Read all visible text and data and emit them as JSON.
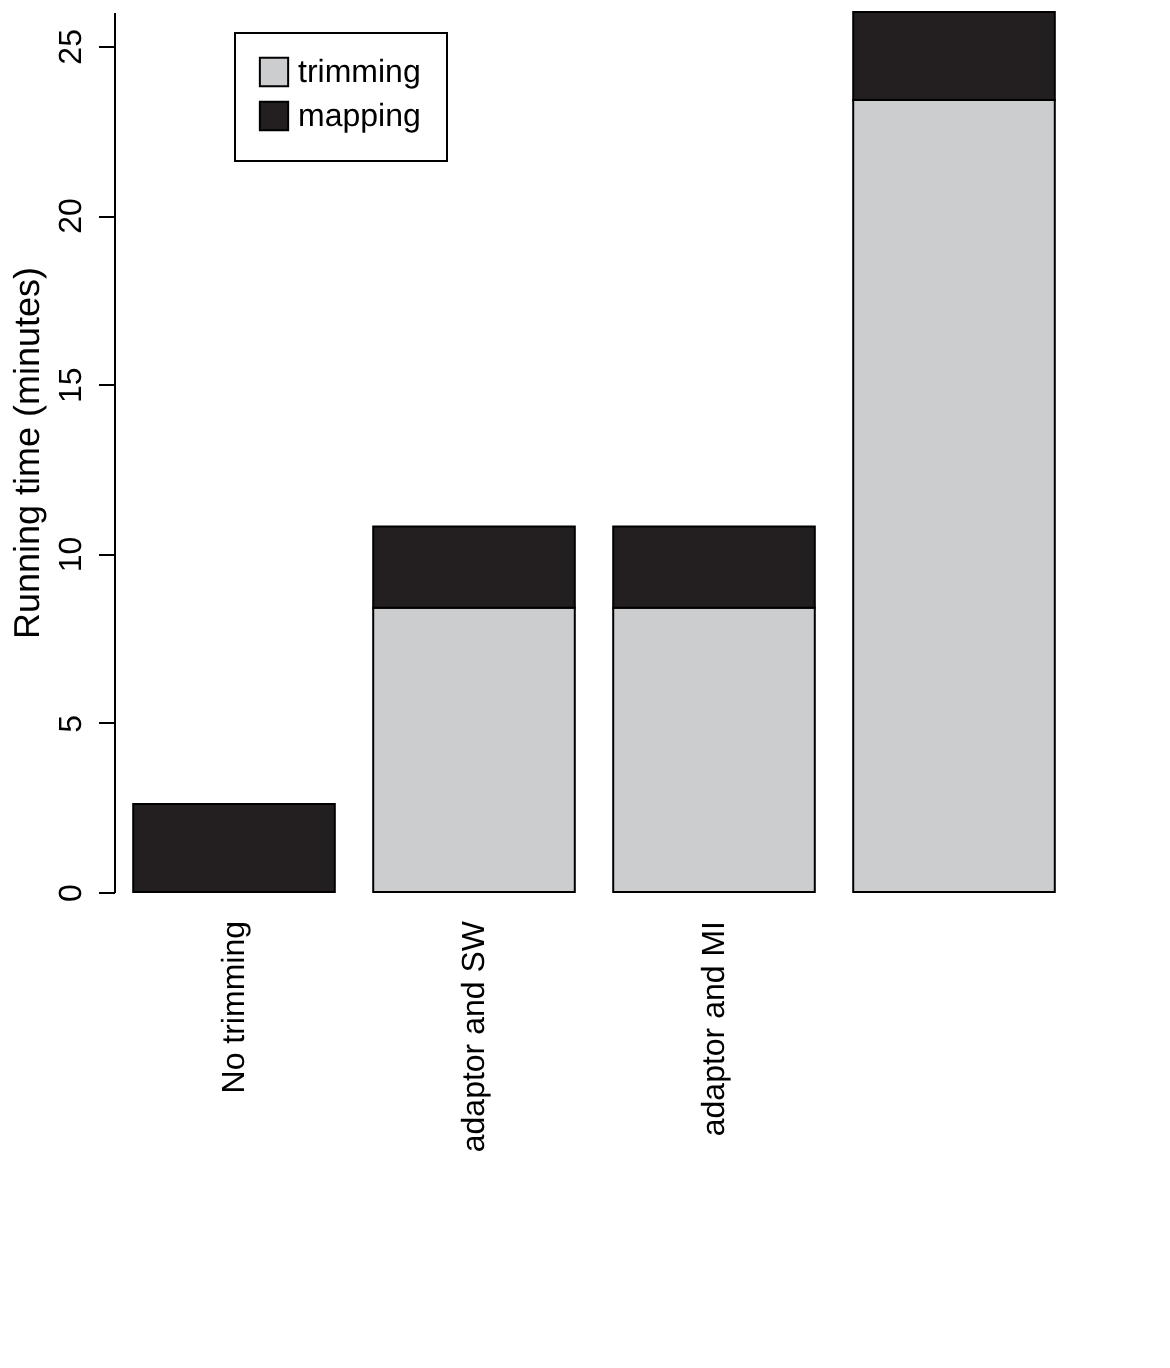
{
  "chart_data": {
    "type": "bar",
    "ylabel": "Running time (minutes)",
    "categories": [
      "No trimming",
      "adaptor and SW",
      "adaptor and MI",
      null
    ],
    "stacked": true,
    "series": [
      {
        "name": "trimming",
        "color": "#cccdcf",
        "values": [
          0,
          8.4,
          8.4,
          23.4
        ]
      },
      {
        "name": "mapping",
        "color": "#231f20",
        "values": [
          2.6,
          2.4,
          2.4,
          2.6
        ]
      }
    ],
    "ylim": [
      0,
      26
    ],
    "yticks": [
      0,
      5,
      10,
      15,
      20,
      25
    ],
    "grid": false,
    "legend": "top left"
  }
}
